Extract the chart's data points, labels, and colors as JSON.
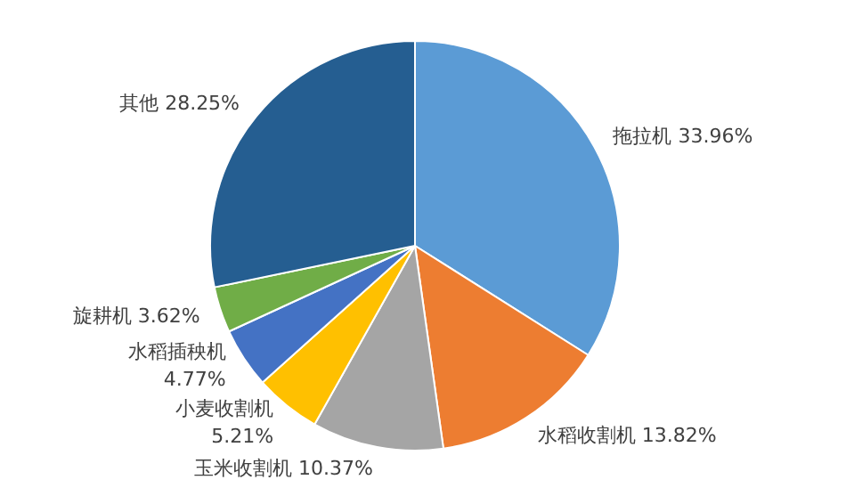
{
  "chart_data": {
    "type": "pie",
    "categories": [
      "拖拉机",
      "水稻收割机",
      "玉米收割机",
      "小麦收割机",
      "水稻插秧机",
      "旋耕机",
      "其他"
    ],
    "values": [
      33.96,
      13.82,
      10.37,
      5.21,
      4.77,
      3.62,
      28.25
    ],
    "value_labels": [
      "33.96%",
      "13.82%",
      "10.37%",
      "5.21%",
      "4.77%",
      "3.62%",
      "28.25%"
    ],
    "colors": [
      "#5b9bd5",
      "#ed7d31",
      "#a5a5a5",
      "#ffc000",
      "#4472c4",
      "#70ad47",
      "#255e91"
    ]
  }
}
